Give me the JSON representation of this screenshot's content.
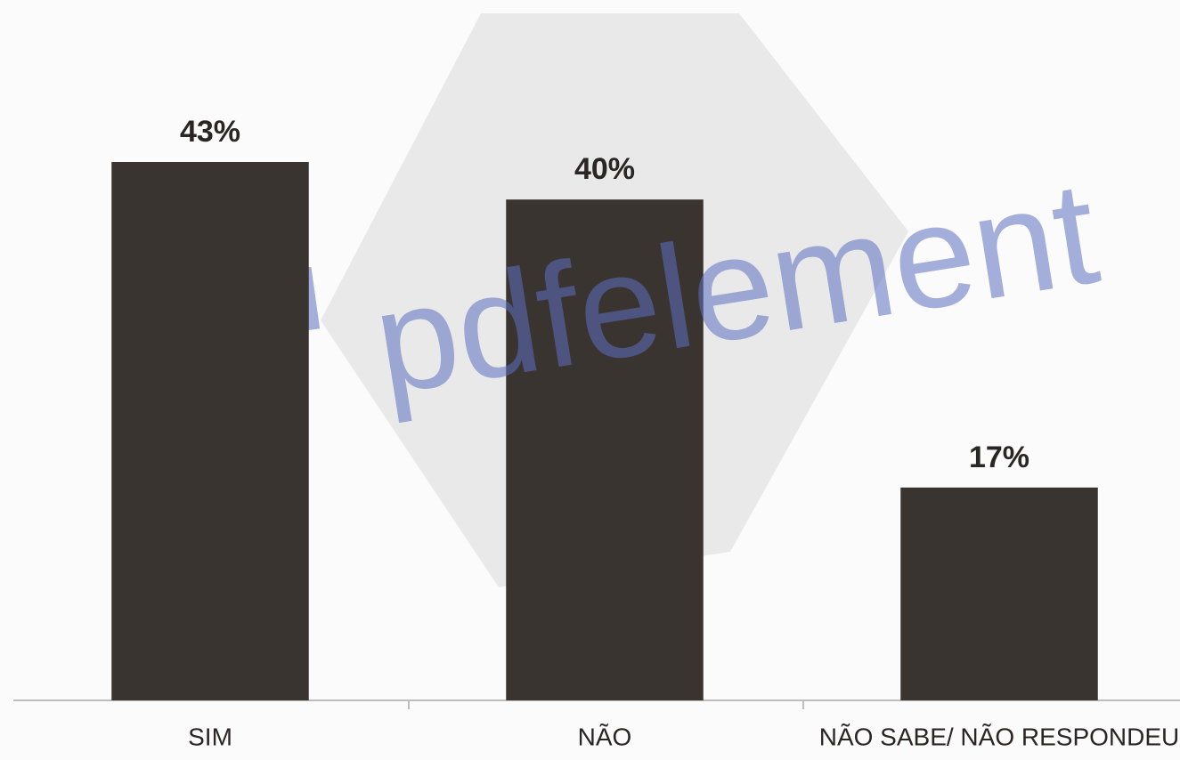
{
  "chart_data": {
    "type": "bar",
    "categories": [
      "SIM",
      "NÃO",
      "NÃO SABE/ NÃO RESPONDEU"
    ],
    "values": [
      43,
      40,
      17
    ],
    "value_labels": [
      "43%",
      "40%",
      "17%"
    ],
    "color": "#3a3431",
    "ylim": [
      0,
      50
    ],
    "grid": false,
    "watermark": "pdfelement"
  }
}
